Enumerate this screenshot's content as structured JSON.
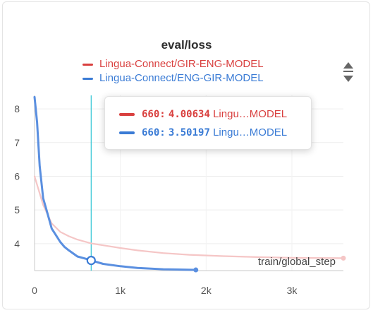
{
  "chart_data": {
    "type": "line",
    "title": "eval/loss",
    "xlabel": "train/global_step",
    "xlim": [
      0,
      3600
    ],
    "ylim": [
      3.2,
      8.4
    ],
    "x_ticks": [
      {
        "value": 0,
        "label": "0"
      },
      {
        "value": 1000,
        "label": "1k"
      },
      {
        "value": 2000,
        "label": "2k"
      },
      {
        "value": 3000,
        "label": "3k"
      }
    ],
    "y_ticks": [
      {
        "value": 4,
        "label": "4"
      },
      {
        "value": 5,
        "label": "5"
      },
      {
        "value": 6,
        "label": "6"
      },
      {
        "value": 7,
        "label": "7"
      },
      {
        "value": 8,
        "label": "8"
      }
    ],
    "grid": true,
    "legend_position": "top",
    "hover_step": 660,
    "series": [
      {
        "name": "Lingua-Connect/GIR-ENG-MODEL",
        "color": "#d9403f",
        "line_color": "#f5c6c6",
        "x": [
          0,
          100,
          200,
          300,
          400,
          500,
          660,
          800,
          1000,
          1200,
          1500,
          1800,
          2200,
          2600,
          3000,
          3600
        ],
        "y": [
          6.0,
          5.15,
          4.6,
          4.35,
          4.22,
          4.12,
          4.00634,
          3.95,
          3.87,
          3.8,
          3.72,
          3.67,
          3.63,
          3.6,
          3.58,
          3.57
        ]
      },
      {
        "name": "Lingua-Connect/ENG-GIR-MODEL",
        "color": "#3a7bd5",
        "line_color": "#5a8fe0",
        "x": [
          0,
          30,
          60,
          100,
          150,
          200,
          250,
          300,
          350,
          400,
          500,
          600,
          660,
          800,
          1000,
          1200,
          1500,
          1880
        ],
        "y": [
          8.35,
          7.6,
          6.3,
          5.35,
          4.9,
          4.45,
          4.25,
          4.05,
          3.9,
          3.8,
          3.62,
          3.55,
          3.50197,
          3.4,
          3.33,
          3.28,
          3.24,
          3.22
        ]
      }
    ]
  },
  "tooltip": {
    "rows": [
      {
        "step": "660:",
        "value": "4.00634",
        "name": "Lingu…MODEL",
        "color": "#d9403f"
      },
      {
        "step": "660:",
        "value": "3.50197",
        "name": "Lingu…MODEL",
        "color": "#3a7bd5"
      }
    ]
  },
  "controls": {
    "legend_scroll_icon": "up-down-arrows-icon"
  }
}
